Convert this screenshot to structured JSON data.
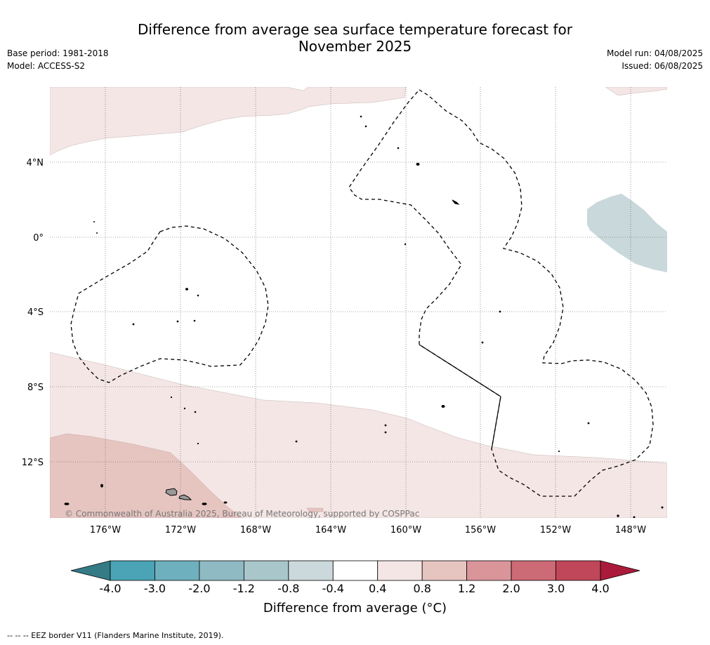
{
  "header": {
    "title_line1": "Difference from average sea surface temperature forecast for",
    "title_line2": "November 2025",
    "base_period": "Base period: 1981-2018",
    "model": "Model: ACCESS-S2",
    "model_run": "Model run: 04/08/2025",
    "issued": "Issued: 06/08/2025"
  },
  "map": {
    "lat_labels": [
      "4°N",
      "0°",
      "4°S",
      "8°S",
      "12°S"
    ],
    "lon_labels": [
      "176°W",
      "172°W",
      "168°W",
      "164°W",
      "160°W",
      "156°W",
      "152°W",
      "148°W"
    ],
    "copyright": "© Commonwealth of Australia 2025, Bureau of Meteorology, supported by COSPPac",
    "colors": {
      "warm_light": "#f4e6e5",
      "warm_medium": "#e6c5c1",
      "cool_light": "#c9d8da",
      "land": "#999999"
    }
  },
  "colorbar": {
    "label": "Difference from average (°C)",
    "ticks": [
      "-4.0",
      "-3.0",
      "-2.0",
      "-1.2",
      "-0.8",
      "-0.4",
      "0.4",
      "0.8",
      "1.2",
      "2.0",
      "3.0",
      "4.0"
    ],
    "colors": [
      "#347b86",
      "#4aa4b5",
      "#6eb0bd",
      "#8fbac4",
      "#a9c6cb",
      "#cbd9dc",
      "#ffffff",
      "#f4e6e5",
      "#e6c5c1",
      "#d9959a",
      "#cc6a75",
      "#c0475a",
      "#ab1a3a"
    ]
  },
  "footnote": "--  --  -- EEZ border V11 (Flanders Marine Institute, 2019)."
}
